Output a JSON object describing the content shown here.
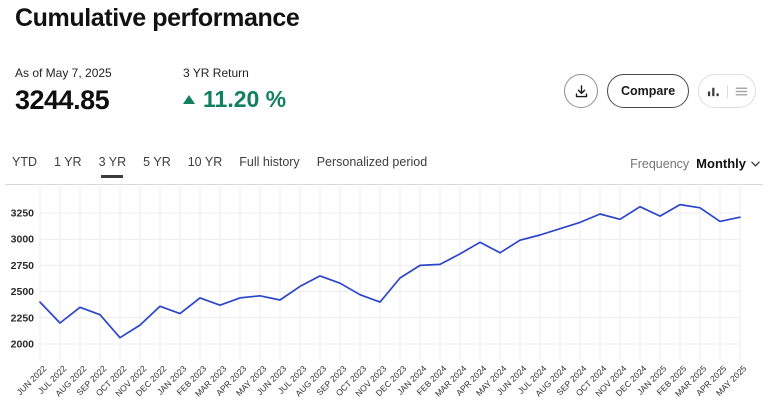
{
  "header": {
    "title": "Cumulative performance"
  },
  "stats": {
    "as_of": "As of May 7, 2025",
    "value": "3244.85",
    "return_label": "3 YR Return",
    "return_value": "11.20 %",
    "return_direction": "up",
    "positive_color": "#11805e"
  },
  "toolbar": {
    "download_icon": "download-icon",
    "compare_label": "Compare",
    "view_toggle_icons": [
      "bar-chart-icon",
      "list-icon"
    ]
  },
  "tabs": {
    "items": [
      {
        "label": "YTD"
      },
      {
        "label": "1 YR"
      },
      {
        "label": "3 YR"
      },
      {
        "label": "5 YR"
      },
      {
        "label": "10 YR"
      },
      {
        "label": "Full history"
      },
      {
        "label": "Personalized period"
      }
    ],
    "active_index": 2
  },
  "frequency": {
    "label": "Frequency",
    "value": "Monthly"
  },
  "chart_data": {
    "type": "line",
    "title": "Cumulative performance",
    "xlabel": "",
    "ylabel": "",
    "x": [
      "JUN 2022",
      "JUL 2022",
      "AUG 2022",
      "SEP 2022",
      "OCT 2022",
      "NOV 2022",
      "DEC 2022",
      "JAN 2023",
      "FEB 2023",
      "MAR 2023",
      "APR 2023",
      "MAY 2023",
      "JUN 2023",
      "JUL 2023",
      "AUG 2023",
      "SEP 2023",
      "OCT 2023",
      "NOV 2023",
      "DEC 2023",
      "JAN 2024",
      "FEB 2024",
      "MAR 2024",
      "APR 2024",
      "MAY 2024",
      "JUN 2024",
      "JUL 2024",
      "AUG 2024",
      "SEP 2024",
      "OCT 2024",
      "NOV 2024",
      "DEC 2024",
      "JAN 2025",
      "FEB 2025",
      "MAR 2025",
      "APR 2025",
      "MAY 2025"
    ],
    "values": [
      2400,
      2200,
      2350,
      2280,
      2060,
      2180,
      2360,
      2290,
      2440,
      2370,
      2440,
      2460,
      2420,
      2550,
      2650,
      2580,
      2470,
      2400,
      2630,
      2750,
      2760,
      2860,
      2970,
      2870,
      2990,
      3040,
      3100,
      3160,
      3240,
      3190,
      3310,
      3220,
      3330,
      3300,
      3170,
      3210
    ],
    "yticks": [
      2000,
      2250,
      2500,
      2750,
      3000,
      3250
    ],
    "ylim": [
      2000,
      3250
    ],
    "grid": true,
    "grid_color": "#ececec",
    "line_color": "#2b46c9",
    "legend": "none"
  }
}
